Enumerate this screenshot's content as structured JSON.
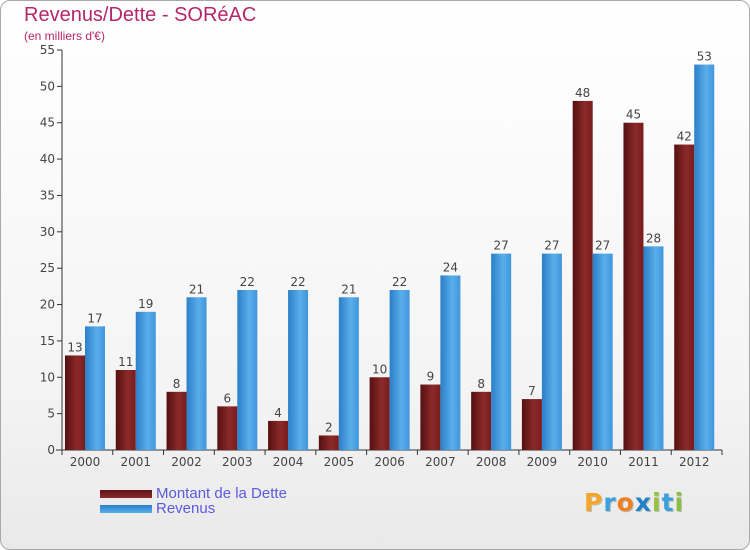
{
  "title": "Revenus/Dette - SORéAC",
  "subtitle": "(en milliers d'€)",
  "chart_data": {
    "type": "bar",
    "title": "Revenus/Dette - SORéAC",
    "subtitle": "(en milliers d'€)",
    "xlabel": "",
    "ylabel": "",
    "categories": [
      "2000",
      "2001",
      "2002",
      "2003",
      "2004",
      "2005",
      "2006",
      "2007",
      "2008",
      "2009",
      "2010",
      "2011",
      "2012"
    ],
    "series": [
      {
        "name": "Montant de la Dette",
        "color": "#7a1c1c",
        "values": [
          13,
          11,
          8,
          6,
          4,
          2,
          10,
          9,
          8,
          7,
          48,
          45,
          42
        ]
      },
      {
        "name": "Revenus",
        "color": "#3f96dd",
        "values": [
          17,
          19,
          21,
          22,
          22,
          21,
          22,
          24,
          27,
          27,
          27,
          28,
          53
        ]
      }
    ],
    "ylim": [
      0,
      55
    ],
    "yticks": [
      0,
      5,
      10,
      15,
      20,
      25,
      30,
      35,
      40,
      45,
      50,
      55
    ],
    "grid": false,
    "legend_position": "bottom-left",
    "data_labels": true
  },
  "legend": {
    "items": [
      {
        "label": "Montant de la Dette",
        "color": "#7a1c1c"
      },
      {
        "label": "Revenus",
        "color": "#3f96dd"
      }
    ]
  },
  "logo": {
    "text": "Proxiti",
    "letters": [
      "P",
      "r",
      "o",
      "x",
      "i",
      "t",
      "i"
    ],
    "colors": [
      "#f4a62a",
      "#3aa0de",
      "#ee7f22",
      "#1f82c9",
      "#96c03d",
      "#3aa0de",
      "#8cbf3f"
    ]
  }
}
